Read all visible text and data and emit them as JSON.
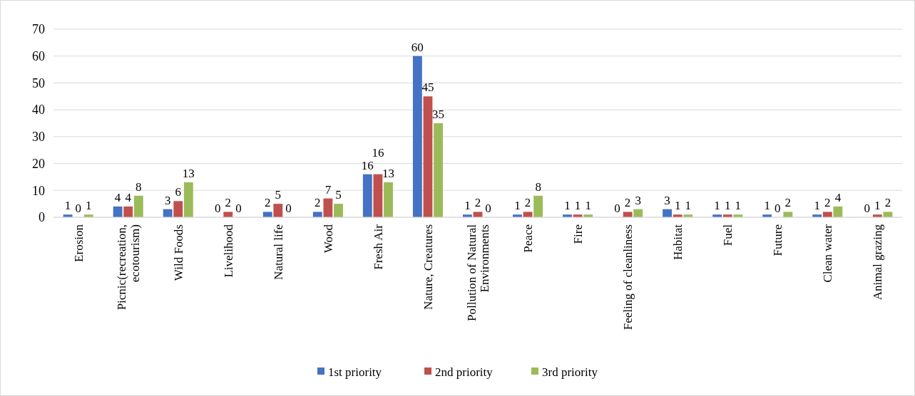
{
  "chart_data": {
    "type": "bar",
    "categories": [
      "Erosion",
      "Picnic(recreation, ecotourism)",
      "Wild Foods",
      "Livelihood",
      "Natural life",
      "Wood",
      "Fresh Air",
      "Nature, Creatures",
      "Pollution of Natural Environments",
      "Peace",
      "Fire",
      "Feeling of cleanliness",
      "Habitat",
      "Fuel",
      "Future",
      "Clean water",
      "Animal grazing"
    ],
    "series": [
      {
        "name": "1st priority",
        "color": "#4472c4",
        "values": [
          1,
          4,
          3,
          0,
          2,
          2,
          16,
          60,
          1,
          1,
          1,
          0,
          3,
          1,
          1,
          1,
          0
        ]
      },
      {
        "name": "2nd priority",
        "color": "#c0504d",
        "values": [
          0,
          4,
          6,
          2,
          5,
          7,
          16,
          45,
          2,
          2,
          1,
          2,
          1,
          1,
          0,
          2,
          1
        ]
      },
      {
        "name": "3rd priority",
        "color": "#9bbb59",
        "values": [
          1,
          8,
          13,
          0,
          0,
          5,
          13,
          35,
          0,
          8,
          1,
          3,
          1,
          1,
          2,
          4,
          2
        ]
      }
    ],
    "ylim": [
      0,
      70
    ],
    "yticks": [
      0,
      10,
      20,
      30,
      40,
      50,
      60,
      70
    ],
    "grid": "y",
    "legend": "bottom",
    "data_labels": true
  }
}
